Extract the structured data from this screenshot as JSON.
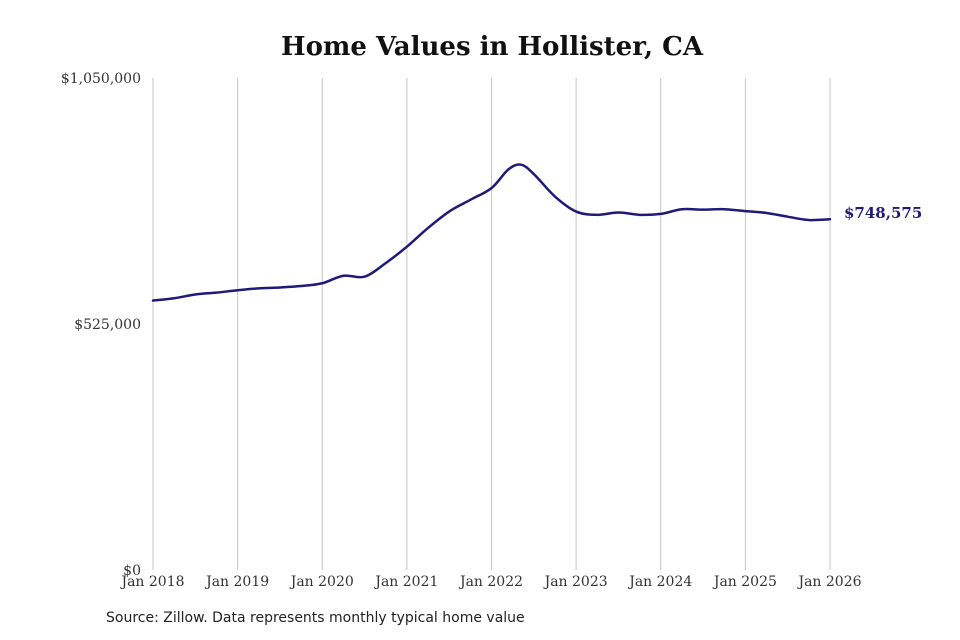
{
  "colors": {
    "line": "#1f1a7a",
    "grid": "#c4c4c4",
    "text": "#333333"
  },
  "source_note": "Source: Zillow. Data represents monthly typical home value",
  "chart_data": {
    "type": "line",
    "title": "Home Values in Hollister, CA",
    "xlabel": "",
    "ylabel": "",
    "x_ticks": [
      2018,
      2019,
      2020,
      2021,
      2022,
      2023,
      2024,
      2025,
      2026
    ],
    "x_tick_labels": [
      "Jan 2018",
      "Jan 2019",
      "Jan 2020",
      "Jan 2021",
      "Jan 2022",
      "Jan 2023",
      "Jan 2024",
      "Jan 2025",
      "Jan 2026"
    ],
    "y_ticks": [
      0,
      525000,
      1050000
    ],
    "y_tick_labels": [
      "$0",
      "$525,000",
      "$1,050,000"
    ],
    "ylim": [
      0,
      1050000
    ],
    "grid": "vertical",
    "end_label": "$748,575",
    "series": [
      {
        "x": [
          2018.0,
          2018.25,
          2018.5,
          2018.75,
          2019.0,
          2019.25,
          2019.5,
          2019.75,
          2020.0,
          2020.25,
          2020.5,
          2020.75,
          2021.0,
          2021.25,
          2021.5,
          2021.75,
          2022.0,
          2022.2,
          2022.35,
          2022.5,
          2022.75,
          2023.0,
          2023.25,
          2023.5,
          2023.75,
          2024.0,
          2024.25,
          2024.5,
          2024.75,
          2025.0,
          2025.25,
          2025.5,
          2025.75,
          2026.0
        ],
        "y": [
          575000,
          580000,
          588000,
          592000,
          597000,
          601000,
          603000,
          606000,
          612000,
          628000,
          626000,
          655000,
          690000,
          730000,
          765000,
          790000,
          815000,
          855000,
          865000,
          845000,
          797000,
          765000,
          758000,
          763000,
          758000,
          760000,
          770000,
          769000,
          770000,
          766000,
          762000,
          754000,
          747000,
          748575
        ]
      }
    ]
  }
}
